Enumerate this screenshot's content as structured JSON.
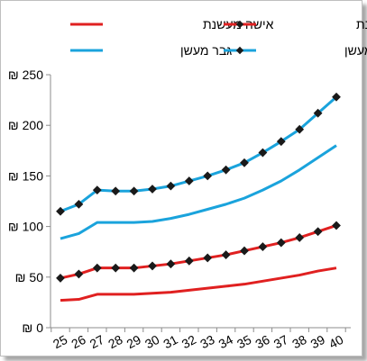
{
  "chart_data": {
    "type": "line",
    "x": [
      "25",
      "26",
      "27",
      "28",
      "29",
      "30",
      "31",
      "32",
      "33",
      "34",
      "35",
      "36",
      "37",
      "38",
      "39",
      "40"
    ],
    "ylim": [
      0,
      250
    ],
    "ytick_values": [
      0,
      50,
      100,
      150,
      200,
      250
    ],
    "ytick_labels": [
      "₪ 0",
      "₪ 50",
      "₪ 100",
      "₪ 150",
      "₪ 200",
      "₪ 250"
    ],
    "grid": false,
    "legend_position": "top",
    "series": [
      {
        "name": "אישה מעשנת",
        "color": "#e02020",
        "marker": "none",
        "values": [
          27,
          28,
          33,
          33,
          33,
          34,
          35,
          37,
          39,
          41,
          43,
          46,
          49,
          52,
          56,
          59
        ]
      },
      {
        "name": "אישה לא מעשנת",
        "color": "#e02020",
        "marker": "diamond",
        "values": [
          49,
          53,
          59,
          59,
          59,
          61,
          63,
          66,
          69,
          72,
          76,
          80,
          84,
          89,
          95,
          101
        ]
      },
      {
        "name": "גבר מעשן",
        "color": "#1aa3dc",
        "marker": "none",
        "values": [
          88,
          93,
          104,
          104,
          104,
          105,
          108,
          112,
          117,
          122,
          128,
          136,
          145,
          156,
          168,
          180
        ]
      },
      {
        "name": "גבר לא מעשן",
        "color": "#1aa3dc",
        "marker": "diamond",
        "values": [
          115,
          122,
          136,
          135,
          135,
          137,
          140,
          145,
          150,
          156,
          163,
          173,
          184,
          196,
          212,
          228
        ]
      }
    ]
  }
}
